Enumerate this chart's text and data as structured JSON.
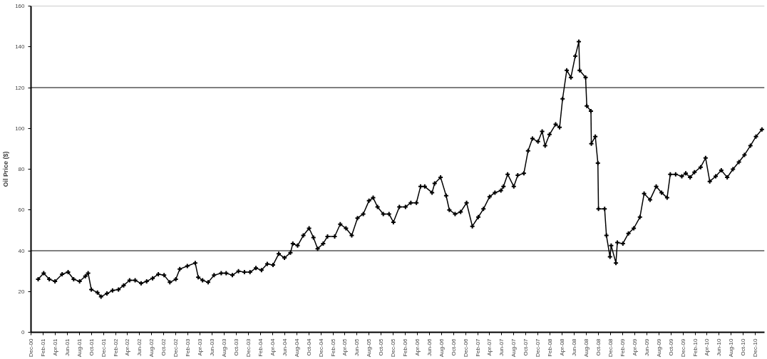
{
  "chart_data": {
    "type": "line",
    "ylabel": "Oil Price ($)",
    "marker": "cross",
    "line_style": "solid",
    "grid": false,
    "xlim": [
      "2000-12-01",
      "2011-01-16"
    ],
    "ylim": [
      0,
      160
    ],
    "yticks": [
      0,
      20,
      40,
      60,
      80,
      100,
      120,
      140,
      160
    ],
    "xticks": [
      {
        "value": "2000-12",
        "label": "Dec-00"
      },
      {
        "value": "2001-02",
        "label": "Feb-01"
      },
      {
        "value": "2001-04",
        "label": "Apr-01"
      },
      {
        "value": "2001-06",
        "label": "Jun-01"
      },
      {
        "value": "2001-08",
        "label": "Aug-01"
      },
      {
        "value": "2001-10",
        "label": "Oct-01"
      },
      {
        "value": "2001-12",
        "label": "Dec-01"
      },
      {
        "value": "2002-02",
        "label": "Feb-02"
      },
      {
        "value": "2002-04",
        "label": "Apr-02"
      },
      {
        "value": "2002-06",
        "label": "Jun-02"
      },
      {
        "value": "2002-08",
        "label": "Aug-02"
      },
      {
        "value": "2002-10",
        "label": "Oct-02"
      },
      {
        "value": "2002-12",
        "label": "Dec-02"
      },
      {
        "value": "2003-02",
        "label": "Feb-03"
      },
      {
        "value": "2003-04",
        "label": "Apr-03"
      },
      {
        "value": "2003-06",
        "label": "Jun-03"
      },
      {
        "value": "2003-08",
        "label": "Aug-03"
      },
      {
        "value": "2003-10",
        "label": "Oct-03"
      },
      {
        "value": "2003-12",
        "label": "Dec-03"
      },
      {
        "value": "2004-02",
        "label": "Feb-04"
      },
      {
        "value": "2004-04",
        "label": "Apr-04"
      },
      {
        "value": "2004-06",
        "label": "Jun-04"
      },
      {
        "value": "2004-08",
        "label": "Aug-04"
      },
      {
        "value": "2004-10",
        "label": "Oct-04"
      },
      {
        "value": "2004-12",
        "label": "Dec-04"
      },
      {
        "value": "2005-02",
        "label": "Feb-05"
      },
      {
        "value": "2005-04",
        "label": "Apr-05"
      },
      {
        "value": "2005-06",
        "label": "Jun-05"
      },
      {
        "value": "2005-08",
        "label": "Aug-05"
      },
      {
        "value": "2005-10",
        "label": "Oct-05"
      },
      {
        "value": "2005-12",
        "label": "Dec-05"
      },
      {
        "value": "2006-02",
        "label": "Feb-06"
      },
      {
        "value": "2006-04",
        "label": "Apr-06"
      },
      {
        "value": "2006-06",
        "label": "Jun-06"
      },
      {
        "value": "2006-08",
        "label": "Aug-06"
      },
      {
        "value": "2006-10",
        "label": "Oct-06"
      },
      {
        "value": "2006-12",
        "label": "Dec-06"
      },
      {
        "value": "2007-02",
        "label": "Feb-07"
      },
      {
        "value": "2007-04",
        "label": "Apr-07"
      },
      {
        "value": "2007-06",
        "label": "Jun-07"
      },
      {
        "value": "2007-08",
        "label": "Aug-07"
      },
      {
        "value": "2007-10",
        "label": "Oct-07"
      },
      {
        "value": "2007-12",
        "label": "Dec-07"
      },
      {
        "value": "2008-02",
        "label": "Feb-08"
      },
      {
        "value": "2008-04",
        "label": "Apr-08"
      },
      {
        "value": "2008-06",
        "label": "Jun-08"
      },
      {
        "value": "2008-08",
        "label": "Aug-08"
      },
      {
        "value": "2008-10",
        "label": "Oct-08"
      },
      {
        "value": "2008-12",
        "label": "Dec-08"
      },
      {
        "value": "2009-02",
        "label": "Feb-09"
      },
      {
        "value": "2009-04",
        "label": "Apr-09"
      },
      {
        "value": "2009-06",
        "label": "Jun-09"
      },
      {
        "value": "2009-08",
        "label": "Aug-09"
      },
      {
        "value": "2009-10",
        "label": "Oct-09"
      },
      {
        "value": "2009-12",
        "label": "Dec-09"
      },
      {
        "value": "2010-02",
        "label": "Feb-10"
      },
      {
        "value": "2010-04",
        "label": "Apr-10"
      },
      {
        "value": "2010-06",
        "label": "Jun-10"
      },
      {
        "value": "2010-08",
        "label": "Aug-10"
      },
      {
        "value": "2010-10",
        "label": "Oct-10"
      },
      {
        "value": "2010-12",
        "label": "Dec-10"
      }
    ],
    "ref_lines": [
      {
        "axis": "y",
        "value": 40,
        "color": "#000000"
      },
      {
        "axis": "y",
        "value": 120,
        "color": "#000000"
      },
      {
        "axis": "y",
        "value": 160,
        "color": "#999999"
      }
    ],
    "x": [
      "2001-01-06",
      "2001-02-03",
      "2001-03-03",
      "2001-04-01",
      "2001-05-07",
      "2001-06-06",
      "2001-07-04",
      "2001-08-03",
      "2001-09-01",
      "2001-09-15",
      "2001-10-01",
      "2001-11-01",
      "2001-11-19",
      "2001-12-19",
      "2002-01-16",
      "2002-02-15",
      "2002-03-13",
      "2002-04-12",
      "2002-05-10",
      "2002-06-09",
      "2002-07-07",
      "2002-08-06",
      "2002-09-04",
      "2002-10-03",
      "2002-11-01",
      "2002-12-01",
      "2002-12-21",
      "2003-01-28",
      "2003-03-09",
      "2003-03-24",
      "2003-04-15",
      "2003-05-13",
      "2003-06-12",
      "2003-07-18",
      "2003-08-12",
      "2003-09-12",
      "2003-10-13",
      "2003-11-12",
      "2003-12-10",
      "2004-01-09",
      "2004-02-06",
      "2004-03-06",
      "2004-04-04",
      "2004-05-03",
      "2004-06-01",
      "2004-07-01",
      "2004-07-13",
      "2004-08-06",
      "2004-09-04",
      "2004-10-03",
      "2004-10-25",
      "2004-11-15",
      "2004-12-13",
      "2005-01-04",
      "2005-02-09",
      "2005-03-09",
      "2005-04-07",
      "2005-05-06",
      "2005-06-04",
      "2005-07-03",
      "2005-08-01",
      "2005-08-22",
      "2005-09-13",
      "2005-10-12",
      "2005-11-10",
      "2005-12-02",
      "2006-01-01",
      "2006-02-01",
      "2006-02-28",
      "2006-03-28",
      "2006-04-18",
      "2006-05-09",
      "2006-06-15",
      "2006-06-28",
      "2006-07-28",
      "2006-08-25",
      "2006-09-10",
      "2006-10-09",
      "2006-11-06",
      "2006-12-06",
      "2007-01-04",
      "2007-02-03",
      "2007-03-01",
      "2007-04-01",
      "2007-04-28",
      "2007-05-28",
      "2007-06-10",
      "2007-07-01",
      "2007-08-01",
      "2007-08-21",
      "2007-09-21",
      "2007-10-12",
      "2007-11-03",
      "2007-12-01",
      "2007-12-22",
      "2008-01-06",
      "2008-01-28",
      "2008-02-28",
      "2008-03-19",
      "2008-04-03",
      "2008-04-24",
      "2008-05-15",
      "2008-06-06",
      "2008-06-24",
      "2008-06-28",
      "2008-07-28",
      "2008-08-03",
      "2008-08-24",
      "2008-08-26",
      "2008-09-15",
      "2008-09-28",
      "2008-10-01",
      "2008-11-01",
      "2008-11-10",
      "2008-11-28",
      "2008-12-04",
      "2008-12-28",
      "2009-01-04",
      "2009-02-01",
      "2009-03-01",
      "2009-03-28",
      "2009-04-28",
      "2009-05-19",
      "2009-06-18",
      "2009-07-19",
      "2009-08-15",
      "2009-09-12",
      "2009-09-28",
      "2009-10-25",
      "2009-11-25",
      "2009-12-15",
      "2010-01-06",
      "2010-01-28",
      "2010-02-28",
      "2010-03-25",
      "2010-04-15",
      "2010-05-15",
      "2010-06-12",
      "2010-07-12",
      "2010-08-10",
      "2010-09-09",
      "2010-10-07",
      "2010-11-06",
      "2010-12-04",
      "2011-01-03"
    ],
    "series": [
      {
        "color": "#000000",
        "values": [
          26,
          29,
          26,
          25,
          28.5,
          29.5,
          26,
          25,
          27.5,
          29,
          21,
          19.5,
          17.5,
          19,
          20.5,
          21,
          23,
          25.5,
          25.5,
          24,
          25,
          26.5,
          28.5,
          28,
          24.5,
          26,
          31,
          32.5,
          34,
          27,
          25.5,
          24.5,
          28,
          29,
          29,
          28,
          30,
          29.5,
          29.5,
          31.5,
          30.5,
          33.5,
          33,
          38.5,
          36.5,
          39,
          43.5,
          42.5,
          47.5,
          51,
          46.5,
          41,
          43.5,
          47,
          47,
          53,
          51,
          47.5,
          56,
          58,
          64.5,
          66,
          61.5,
          58,
          58,
          54,
          61.5,
          61.5,
          63.5,
          63.5,
          71.5,
          71.5,
          68.5,
          73,
          76,
          67,
          60,
          58,
          59,
          63.5,
          52,
          56.5,
          60.5,
          66.5,
          68.5,
          69.5,
          71.5,
          77.5,
          71.5,
          77,
          78,
          89,
          95,
          93.5,
          98.5,
          91.5,
          97,
          102,
          100.5,
          114.5,
          128.5,
          125,
          135.5,
          142.5,
          128.5,
          125,
          111,
          108.5,
          92.5,
          96,
          83,
          60.5,
          60.5,
          47.5,
          37,
          42.5,
          34,
          44,
          43.5,
          48.5,
          51,
          56.5,
          68,
          65,
          71.5,
          68.5,
          66,
          77.5,
          77.5,
          76.5,
          78,
          76,
          78.5,
          81,
          85.5,
          74,
          76.5,
          79.5,
          76,
          80,
          83.5,
          87,
          91.5,
          96,
          99.5
        ]
      }
    ]
  }
}
